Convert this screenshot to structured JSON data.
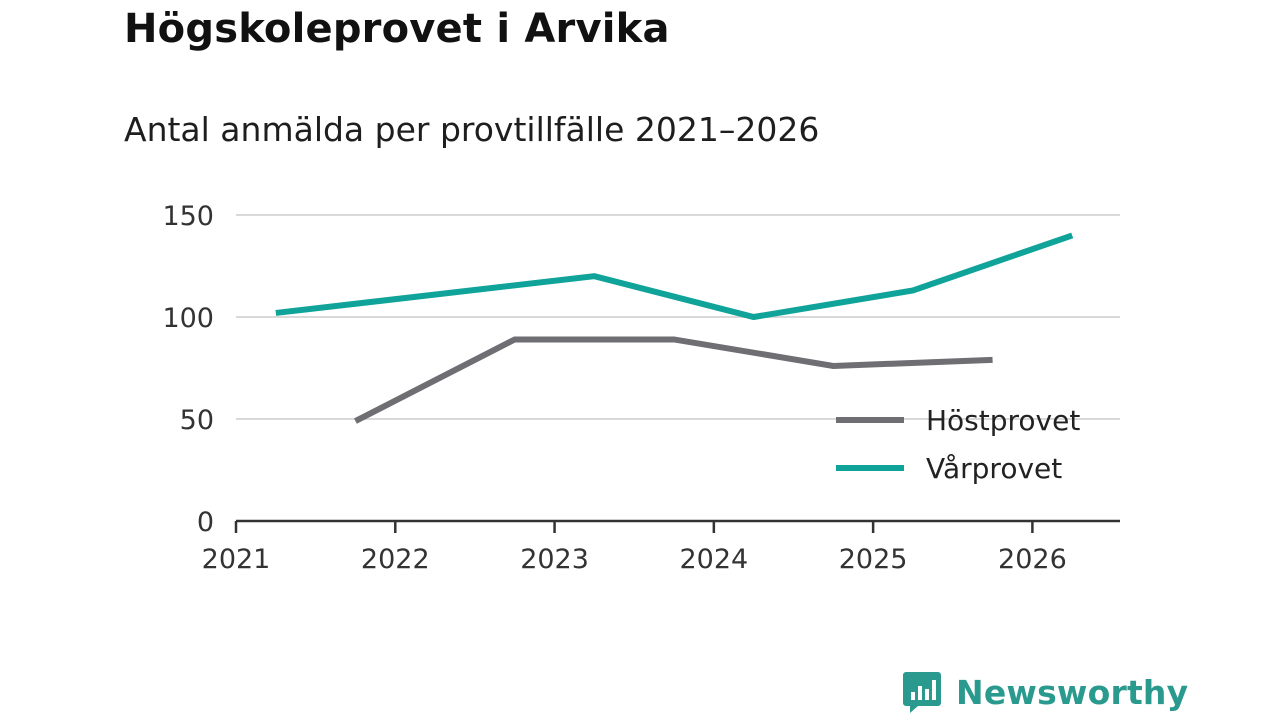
{
  "title": "Högskoleprovet i Arvika",
  "subtitle": "Antal anmälda per provtillfälle 2021–2026",
  "brand": {
    "name": "Newsworthy",
    "color": "#2a9a8e",
    "icon": "bar-chart-speech-bubble-icon"
  },
  "chart_data": {
    "type": "line",
    "xlim": [
      2021,
      2026.55
    ],
    "ylim": [
      0,
      150
    ],
    "x_ticks": [
      "2021",
      "2022",
      "2023",
      "2024",
      "2025",
      "2026"
    ],
    "y_ticks": [
      "0",
      "50",
      "100",
      "150"
    ],
    "grid": true,
    "legend_position": "bottom-right",
    "series": [
      {
        "name": "Höstprovet",
        "color": "#6e6e73",
        "points": [
          {
            "x": 2021.75,
            "y": 49
          },
          {
            "x": 2022.75,
            "y": 89
          },
          {
            "x": 2023.25,
            "y": 89
          },
          {
            "x": 2023.75,
            "y": 89
          },
          {
            "x": 2024.75,
            "y": 76
          },
          {
            "x": 2025.75,
            "y": 79
          }
        ]
      },
      {
        "name": "Vårprovet",
        "color": "#0fa39a",
        "points": [
          {
            "x": 2021.25,
            "y": 102
          },
          {
            "x": 2023.25,
            "y": 120
          },
          {
            "x": 2024.25,
            "y": 100
          },
          {
            "x": 2025.25,
            "y": 113
          },
          {
            "x": 2026.25,
            "y": 140
          }
        ]
      }
    ]
  }
}
